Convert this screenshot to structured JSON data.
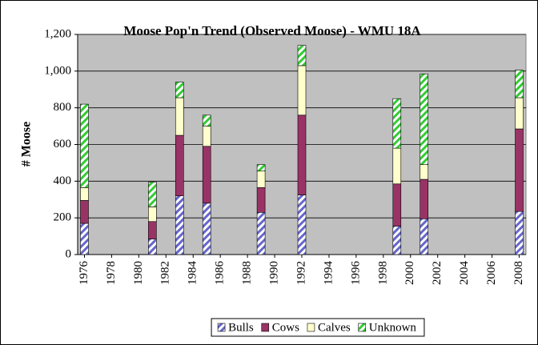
{
  "chart_data": {
    "type": "stacked_bar",
    "title": "Moose Pop'n Trend (Observed Moose) - WMU 18A",
    "y_label": "# Moose",
    "x": [
      1976,
      1981,
      1983,
      1985,
      1989,
      1992,
      1999,
      2001,
      2008
    ],
    "series": [
      {
        "name": "Bulls",
        "color": "#6666cc",
        "pattern": "stripes",
        "values": [
          170,
          85,
          320,
          280,
          230,
          325,
          155,
          195,
          235
        ]
      },
      {
        "name": "Cows",
        "color": "#993366",
        "pattern": "solid",
        "values": [
          125,
          95,
          330,
          310,
          135,
          435,
          230,
          215,
          450
        ]
      },
      {
        "name": "Calves",
        "color": "#ffffcc",
        "pattern": "solid",
        "values": [
          70,
          80,
          205,
          110,
          90,
          270,
          195,
          80,
          170
        ]
      },
      {
        "name": "Unknown",
        "color": "#33cc33",
        "pattern": "stripes",
        "values": [
          455,
          135,
          85,
          60,
          35,
          110,
          270,
          495,
          150
        ]
      }
    ],
    "xlim": [
      1975.5,
      2008.5
    ],
    "xticks": [
      1976,
      1978,
      1980,
      1982,
      1984,
      1986,
      1988,
      1990,
      1992,
      1994,
      1996,
      1998,
      2000,
      2002,
      2004,
      2006,
      2008
    ],
    "ylim": [
      0,
      1200
    ],
    "yticks": [
      0,
      200,
      400,
      600,
      800,
      {
        "value": 1000,
        "label": "1,000"
      },
      {
        "value": 1200,
        "label": "1,200"
      }
    ],
    "grid": true,
    "legend": "bottom"
  }
}
